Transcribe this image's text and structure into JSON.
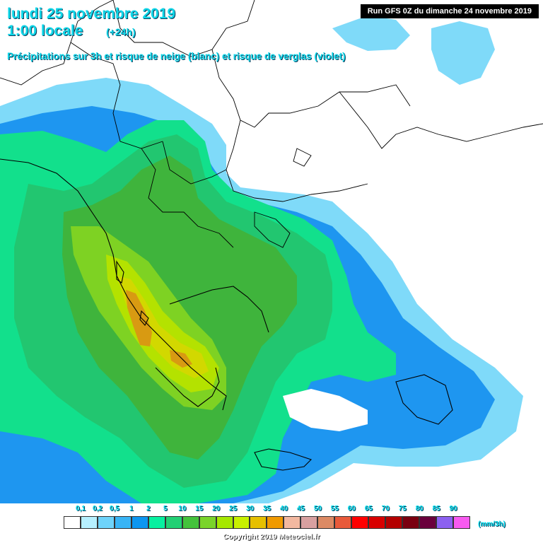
{
  "header": {
    "title_line1": "lundi 25 novembre 2019",
    "title_line2": "1:00 locale",
    "title_offset": "(+24h)",
    "subtitle": "Précipitations sur 3h et risque de neige (blanc) et risque de verglas (violet)",
    "run_info": "Run GFS 0Z du dimanche 24 novembre 2019"
  },
  "legend": {
    "ticks": [
      "0,1",
      "0,2",
      "0,5",
      "1",
      "2",
      "5",
      "10",
      "15",
      "20",
      "25",
      "30",
      "35",
      "40",
      "45",
      "50",
      "55",
      "60",
      "65",
      "70",
      "75",
      "80",
      "85",
      "90"
    ],
    "colors": [
      "#ffffff",
      "#b6f0ff",
      "#6ed3fa",
      "#38b4f5",
      "#0c96f0",
      "#08f0a0",
      "#22d074",
      "#44c23c",
      "#7ad42a",
      "#a6e800",
      "#c8f000",
      "#e6c000",
      "#f09a00",
      "#f2b8a0",
      "#d8a0a0",
      "#dc8a64",
      "#e85a3a",
      "#ff0000",
      "#d80000",
      "#b40000",
      "#7a0010",
      "#6a003c",
      "#8c60f0",
      "#f85af0"
    ],
    "unit": "(mm/3h)"
  },
  "footer": {
    "copyright": "Copyright 2019 Meteociel.fr"
  },
  "map_colors": {
    "sea_background": "#4ab8f6",
    "light_cyan": "#7fdaf9",
    "blue": "#1e96f0",
    "green_light": "#12e08c",
    "green_mid": "#22c670",
    "green_dark": "#3fb43c",
    "lime": "#7ed223",
    "yellow_green": "#b4e200",
    "yellow": "#d2d800",
    "orange": "#d89a12",
    "border_line": "#000000"
  }
}
